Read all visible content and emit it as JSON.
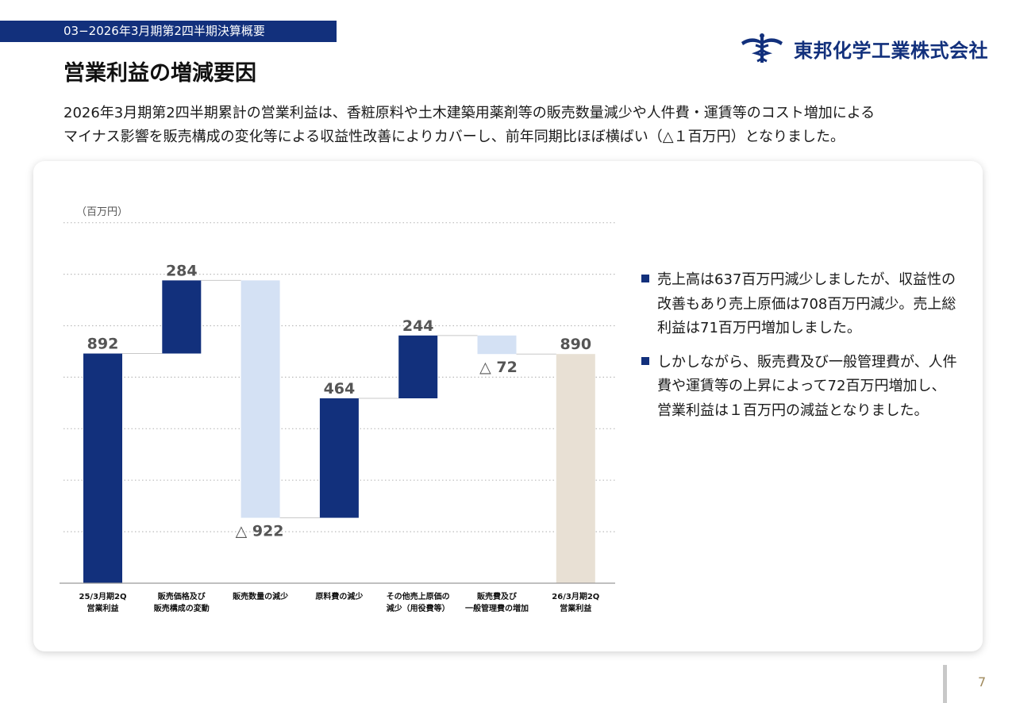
{
  "header": {
    "section_tag": "03−2026年3月期第2四半期決算概要",
    "title": "営業利益の増減要因",
    "company": "東邦化学工業株式会社"
  },
  "intro": {
    "line1": "2026年3月期第2四半期累計の営業利益は、香粧原料や土木建築用薬剤等の販売数量減少や人件費・運賃等のコスト増加による",
    "line2": "マイナス影響を販売構成の変化等による収益性改善によりカバーし、前年同期比ほぼ横ばい（△１百万円）となりました。"
  },
  "chart_data": {
    "type": "waterfall",
    "unit_label": "（百万円）",
    "ylim": [
      0,
      1400
    ],
    "grid": true,
    "categories": [
      [
        "25/3月期2Q",
        "営業利益"
      ],
      [
        "販売価格及び",
        "販売構成の変動"
      ],
      [
        "販売数量の減少"
      ],
      [
        "原料費の減少"
      ],
      [
        "その他売上原価の",
        "減少（用役費等）"
      ],
      [
        "販売費及び",
        "一般管理費の増加"
      ],
      [
        "26/3月期2Q",
        "営業利益"
      ]
    ],
    "steps": [
      {
        "kind": "total",
        "value": 892,
        "label": "892"
      },
      {
        "kind": "increase",
        "value": 284,
        "label": "284"
      },
      {
        "kind": "decrease",
        "value": -922,
        "label": "△ 922"
      },
      {
        "kind": "increase",
        "value": 464,
        "label": "464"
      },
      {
        "kind": "increase",
        "value": 244,
        "label": "244"
      },
      {
        "kind": "decrease",
        "value": -72,
        "label": "△ 72"
      },
      {
        "kind": "total",
        "value": 890,
        "label": "890"
      }
    ],
    "colors": {
      "total_start": "#12307c",
      "increase": "#12307c",
      "decrease": "#d4e1f4",
      "total_end": "#e8e0d4",
      "label": "#555555",
      "grid": "#bbbbbb"
    }
  },
  "bullets": [
    {
      "text": "売上高は637百万円減少しましたが、収益性の改善もあり売上原価は708百万円減少。売上総利益は71百万円増加しました。"
    },
    {
      "text": "しかしながら、販売費及び一般管理費が、人件費や運賃等の上昇によって72百万円増加し、営業利益は１百万円の減益となりました。"
    }
  ],
  "page_number": "7"
}
